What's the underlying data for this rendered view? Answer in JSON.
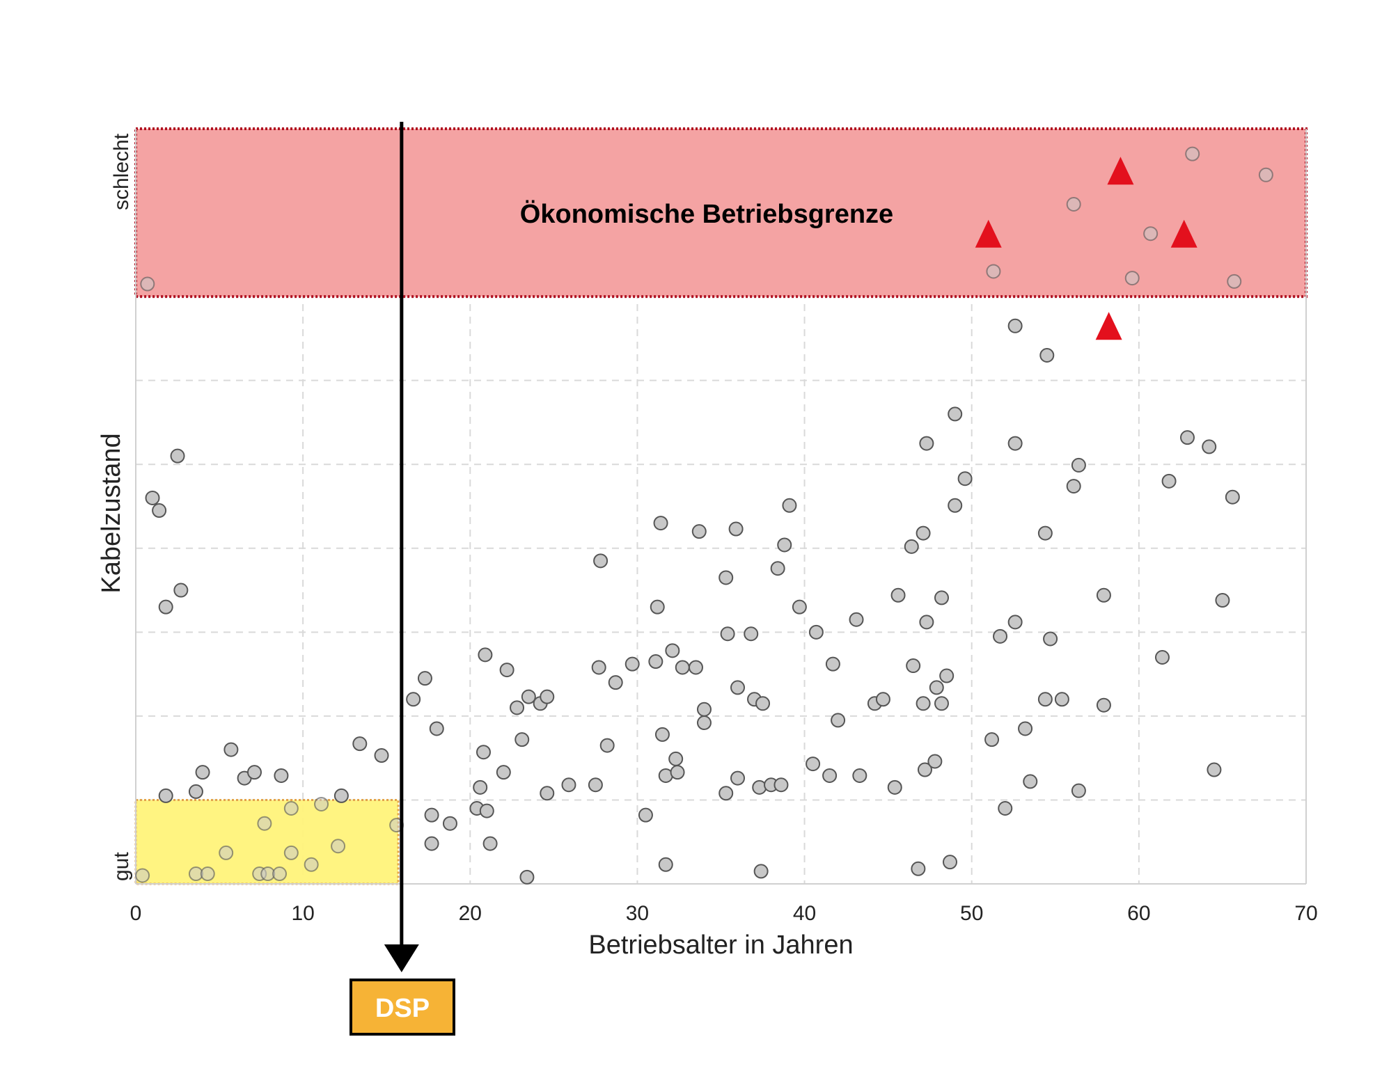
{
  "chart_data": {
    "type": "scatter",
    "title": "",
    "xlabel": "Betriebsalter in Jahren",
    "ylabel": "Kabelzustand",
    "y_end_labels": {
      "bottom": "gut",
      "top": "schlecht"
    },
    "xlim": [
      0,
      70
    ],
    "ylim": [
      0,
      9
    ],
    "x_ticks": [
      0,
      10,
      20,
      30,
      40,
      50,
      60,
      70
    ],
    "grid": true,
    "legend": "none",
    "colors": {
      "point_fill": "#c8c8c8",
      "point_stroke": "#555555",
      "triangle": "#e3101d",
      "red_zone": "#f4a3a3",
      "red_border": "#b01020",
      "yellow_zone": "#fff37a",
      "yellow_border": "#e3a24a",
      "dsp_box": "#f6b336"
    },
    "zones": [
      {
        "label": "Ökonomische Betriebsgrenze",
        "x": [
          0,
          70
        ],
        "y": [
          7.0,
          9.0
        ],
        "color": "#f4a3a3"
      },
      {
        "label": "",
        "x": [
          0,
          15.7
        ],
        "y": [
          0,
          1.0
        ],
        "color": "#fff37a"
      }
    ],
    "marker_line": {
      "x": 15.9,
      "label": "DSP"
    },
    "series": [
      {
        "marker": "circle",
        "points": [
          [
            0.4,
            0.1
          ],
          [
            0.7,
            7.15
          ],
          [
            1.0,
            4.6
          ],
          [
            1.4,
            4.45
          ],
          [
            1.8,
            3.3
          ],
          [
            1.8,
            1.05
          ],
          [
            2.5,
            5.1
          ],
          [
            2.7,
            3.5
          ],
          [
            3.6,
            1.1
          ],
          [
            3.6,
            0.12
          ],
          [
            4.0,
            1.33
          ],
          [
            4.3,
            0.12
          ],
          [
            5.4,
            0.37
          ],
          [
            5.7,
            1.6
          ],
          [
            6.5,
            1.26
          ],
          [
            7.1,
            1.33
          ],
          [
            7.4,
            0.12
          ],
          [
            7.7,
            0.72
          ],
          [
            7.9,
            0.12
          ],
          [
            8.6,
            0.12
          ],
          [
            8.7,
            1.29
          ],
          [
            9.3,
            0.37
          ],
          [
            9.3,
            0.9
          ],
          [
            10.5,
            0.23
          ],
          [
            11.1,
            0.95
          ],
          [
            12.1,
            0.45
          ],
          [
            12.3,
            1.05
          ],
          [
            13.4,
            1.67
          ],
          [
            14.7,
            1.53
          ],
          [
            15.6,
            0.7
          ],
          [
            16.6,
            2.2
          ],
          [
            17.3,
            2.45
          ],
          [
            17.7,
            0.82
          ],
          [
            17.7,
            0.48
          ],
          [
            18.0,
            1.85
          ],
          [
            18.8,
            0.72
          ],
          [
            20.4,
            0.9
          ],
          [
            20.6,
            1.15
          ],
          [
            20.8,
            1.57
          ],
          [
            20.9,
            2.73
          ],
          [
            21.0,
            0.87
          ],
          [
            21.2,
            0.48
          ],
          [
            22.0,
            1.33
          ],
          [
            22.2,
            2.55
          ],
          [
            22.8,
            2.1
          ],
          [
            23.1,
            1.72
          ],
          [
            23.4,
            0.08
          ],
          [
            23.5,
            2.23
          ],
          [
            24.2,
            2.15
          ],
          [
            24.6,
            1.08
          ],
          [
            24.6,
            2.23
          ],
          [
            25.9,
            1.18
          ],
          [
            27.5,
            1.18
          ],
          [
            27.7,
            2.58
          ],
          [
            27.8,
            3.85
          ],
          [
            28.2,
            1.65
          ],
          [
            28.7,
            2.4
          ],
          [
            29.7,
            2.62
          ],
          [
            30.5,
            0.82
          ],
          [
            31.1,
            2.65
          ],
          [
            31.2,
            3.3
          ],
          [
            31.4,
            4.3
          ],
          [
            31.5,
            1.78
          ],
          [
            31.7,
            1.29
          ],
          [
            31.7,
            0.23
          ],
          [
            32.1,
            2.78
          ],
          [
            32.3,
            1.49
          ],
          [
            32.4,
            1.33
          ],
          [
            32.7,
            2.58
          ],
          [
            33.5,
            2.58
          ],
          [
            33.7,
            4.2
          ],
          [
            34.0,
            1.92
          ],
          [
            34.0,
            2.08
          ],
          [
            35.3,
            1.08
          ],
          [
            35.3,
            3.65
          ],
          [
            35.4,
            2.98
          ],
          [
            35.9,
            4.23
          ],
          [
            36.0,
            1.26
          ],
          [
            36.0,
            2.34
          ],
          [
            36.8,
            2.98
          ],
          [
            37.0,
            2.2
          ],
          [
            37.3,
            1.15
          ],
          [
            37.4,
            0.15
          ],
          [
            37.5,
            2.15
          ],
          [
            38.0,
            1.18
          ],
          [
            38.4,
            3.76
          ],
          [
            38.6,
            1.18
          ],
          [
            38.8,
            4.04
          ],
          [
            39.1,
            4.51
          ],
          [
            39.7,
            3.3
          ],
          [
            40.5,
            1.43
          ],
          [
            40.7,
            3.0
          ],
          [
            41.5,
            1.29
          ],
          [
            41.7,
            2.62
          ],
          [
            42.0,
            1.95
          ],
          [
            43.1,
            3.15
          ],
          [
            43.3,
            1.29
          ],
          [
            44.2,
            2.15
          ],
          [
            44.7,
            2.2
          ],
          [
            45.4,
            1.15
          ],
          [
            45.6,
            3.44
          ],
          [
            46.4,
            4.02
          ],
          [
            46.5,
            2.6
          ],
          [
            46.8,
            0.18
          ],
          [
            47.1,
            2.15
          ],
          [
            47.1,
            4.18
          ],
          [
            47.2,
            1.36
          ],
          [
            47.3,
            5.25
          ],
          [
            47.3,
            3.12
          ],
          [
            47.8,
            1.46
          ],
          [
            47.9,
            2.34
          ],
          [
            48.2,
            2.15
          ],
          [
            48.2,
            3.41
          ],
          [
            48.5,
            2.48
          ],
          [
            48.7,
            0.26
          ],
          [
            49.0,
            5.6
          ],
          [
            49.0,
            4.51
          ],
          [
            49.6,
            4.83
          ],
          [
            51.2,
            1.72
          ],
          [
            51.3,
            7.3
          ],
          [
            51.7,
            2.95
          ],
          [
            52.0,
            0.9
          ],
          [
            52.6,
            3.12
          ],
          [
            52.6,
            5.25
          ],
          [
            52.6,
            6.65
          ],
          [
            53.2,
            1.85
          ],
          [
            53.5,
            1.22
          ],
          [
            54.4,
            2.2
          ],
          [
            54.4,
            4.18
          ],
          [
            54.5,
            6.3
          ],
          [
            54.7,
            2.92
          ],
          [
            55.4,
            2.2
          ],
          [
            56.1,
            8.1
          ],
          [
            56.1,
            4.74
          ],
          [
            56.4,
            4.99
          ],
          [
            56.4,
            1.11
          ],
          [
            57.9,
            3.44
          ],
          [
            57.9,
            2.13
          ],
          [
            59.6,
            7.22
          ],
          [
            60.7,
            7.75
          ],
          [
            61.4,
            2.7
          ],
          [
            61.8,
            4.8
          ],
          [
            62.9,
            5.32
          ],
          [
            63.2,
            8.7
          ],
          [
            64.2,
            5.21
          ],
          [
            64.5,
            1.36
          ],
          [
            65.0,
            3.38
          ],
          [
            65.6,
            4.61
          ],
          [
            65.7,
            7.18
          ],
          [
            67.6,
            8.45
          ]
        ]
      },
      {
        "marker": "triangle",
        "points": [
          [
            51.0,
            7.75
          ],
          [
            58.2,
            6.65
          ],
          [
            58.9,
            8.5
          ],
          [
            62.7,
            7.75
          ]
        ]
      }
    ]
  }
}
